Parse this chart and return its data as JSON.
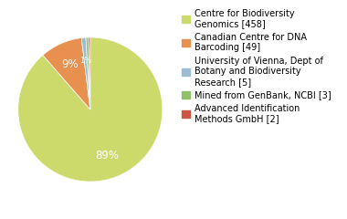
{
  "labels": [
    "Centre for Biodiversity\nGenomics [458]",
    "Canadian Centre for DNA\nBarcoding [49]",
    "University of Vienna, Dept of\nBotany and Biodiversity\nResearch [5]",
    "Mined from GenBank, NCBI [3]",
    "Advanced Identification\nMethods GmbH [2]"
  ],
  "values": [
    458,
    49,
    5,
    3,
    2
  ],
  "colors": [
    "#ccd96b",
    "#e89050",
    "#9bbdd4",
    "#8fc06e",
    "#cc5544"
  ],
  "text_color": "white",
  "background_color": "#ffffff",
  "legend_fontsize": 7.0,
  "pct_fontsize": 8.5
}
